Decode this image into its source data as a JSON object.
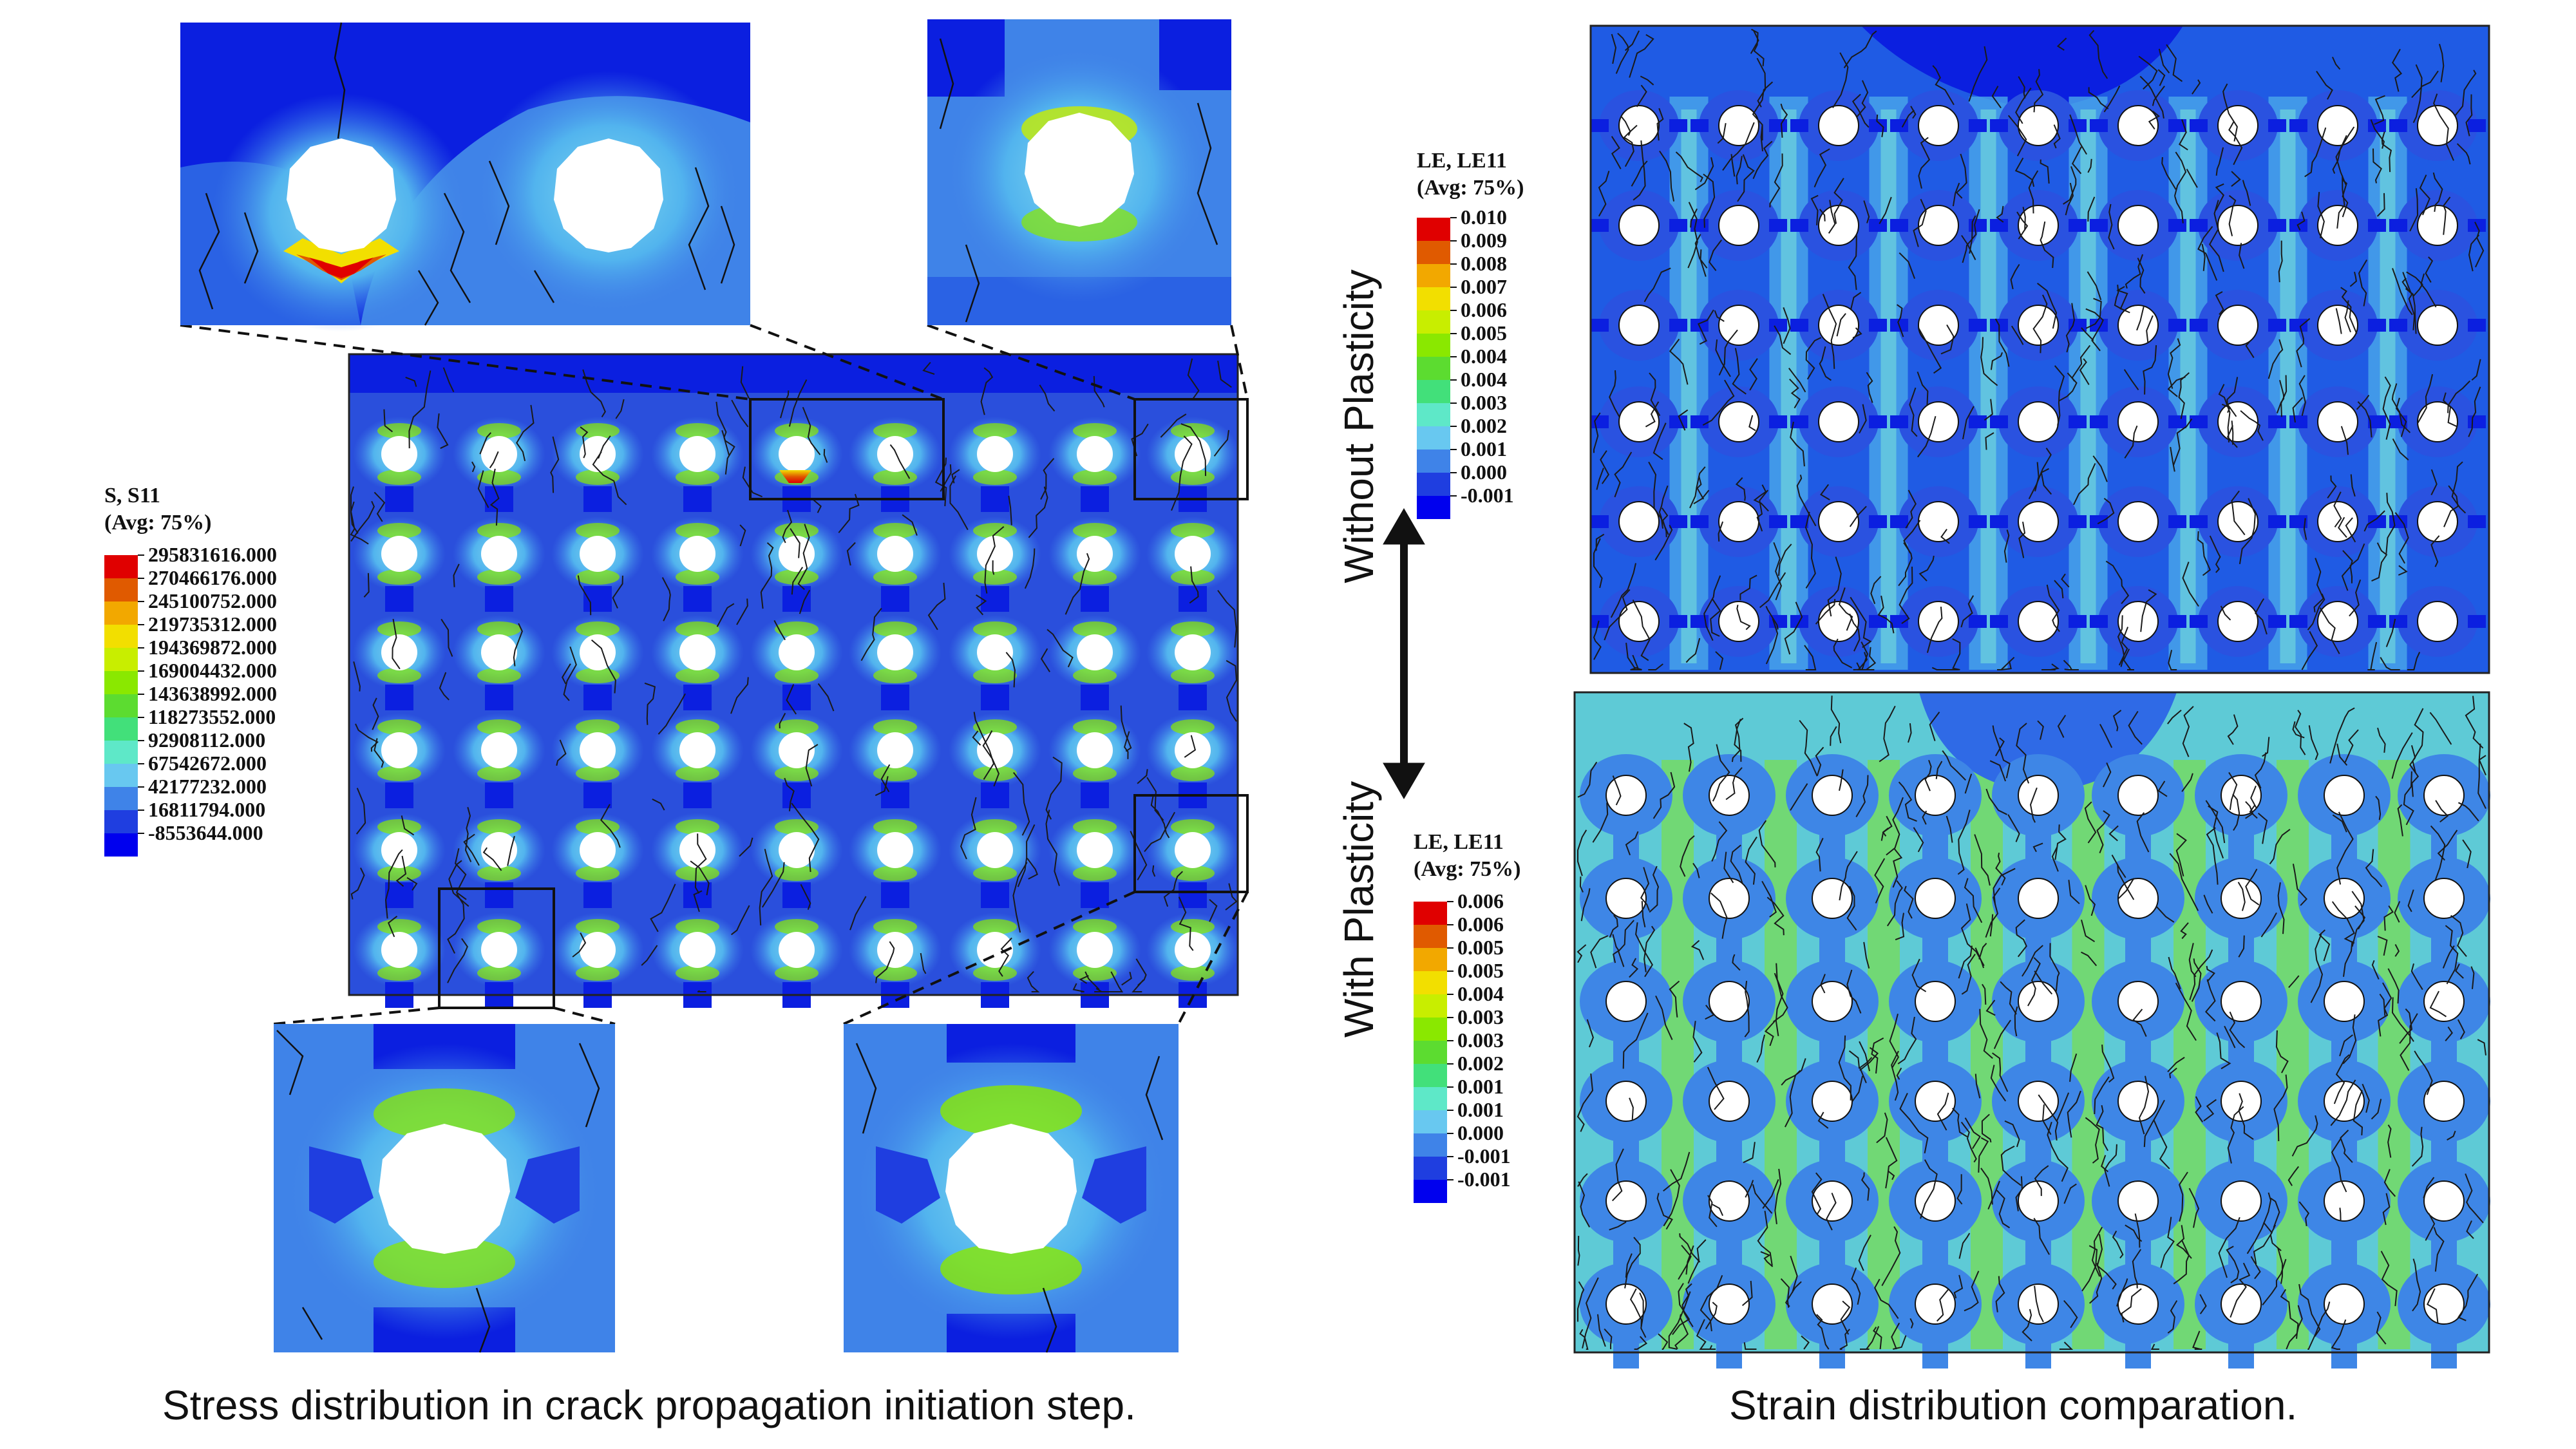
{
  "stress_legend": {
    "title": "S, S11",
    "subtitle": "(Avg: 75%)",
    "values": [
      "295831616.000",
      "270466176.000",
      "245100752.000",
      "219735312.000",
      "194369872.000",
      "169004432.000",
      "143638992.000",
      "118273552.000",
      "92908112.000",
      "67542672.000",
      "42177232.000",
      "16811794.000",
      "-8553644.000"
    ]
  },
  "strain_legend_no_plastic": {
    "title": "LE, LE11",
    "subtitle": "(Avg: 75%)",
    "values": [
      "0.010",
      "0.009",
      "0.008",
      "0.007",
      "0.006",
      "0.005",
      "0.004",
      "0.004",
      "0.003",
      "0.002",
      "0.001",
      "0.000",
      "-0.001"
    ]
  },
  "strain_legend_plastic": {
    "title": "LE, LE11",
    "subtitle": "(Avg: 75%)",
    "values": [
      "0.006",
      "0.006",
      "0.005",
      "0.005",
      "0.004",
      "0.003",
      "0.003",
      "0.002",
      "0.001",
      "0.001",
      "0.000",
      "-0.001",
      "-0.001"
    ]
  },
  "labels": {
    "without_plasticity": "Without Plasticity",
    "with_plasticity": "With Plasticity",
    "caption_left": "Stress distribution in crack propagation initiation step.",
    "caption_right": "Strain distribution comparation."
  },
  "colors": {
    "contour_scale": [
      "#e00000",
      "#e05a00",
      "#f2a800",
      "#f2df00",
      "#c8ee00",
      "#8ae800",
      "#5cdc30",
      "#42e07a",
      "#5ee8c8",
      "#68c8f0",
      "#3f83e8",
      "#1f3ee0",
      "#0000ee"
    ],
    "background_field": "#2a4fdc",
    "deep_blue": "#0b1fe0",
    "hole": "#ffffff",
    "crack": "#1a1a1a"
  }
}
